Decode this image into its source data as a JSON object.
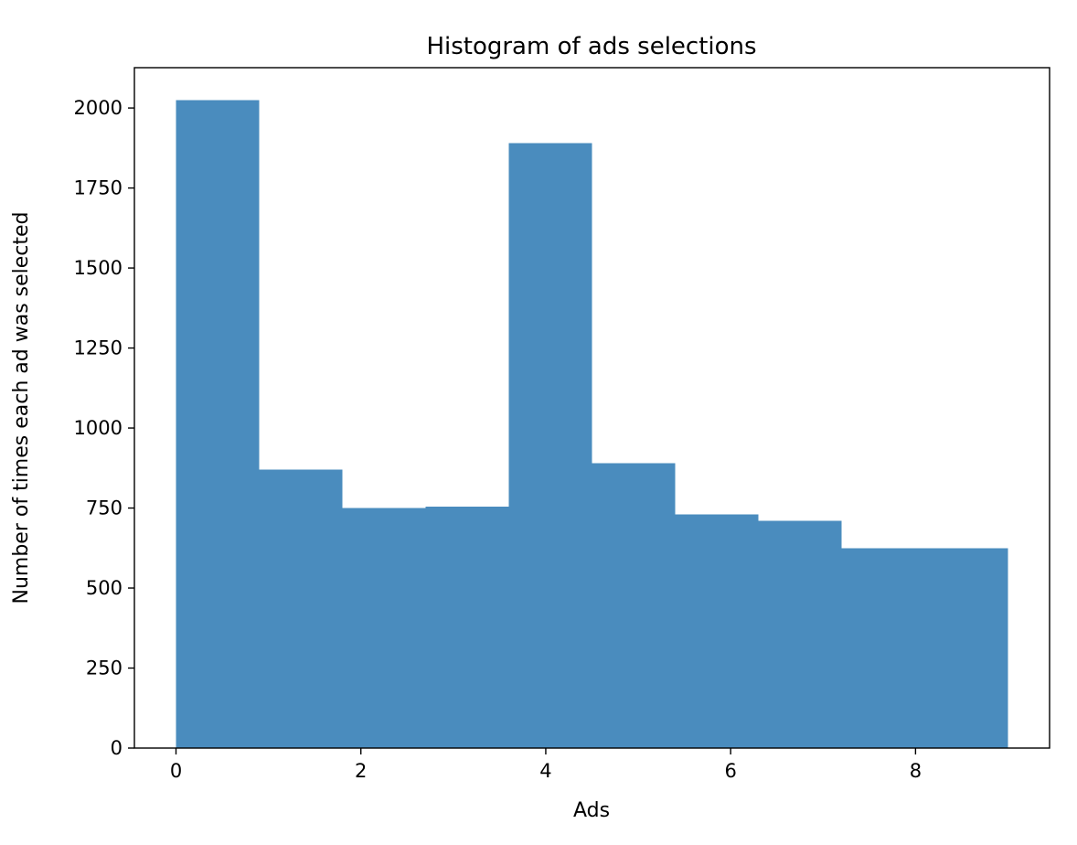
{
  "chart_data": {
    "type": "bar",
    "title": "Histogram of ads selections",
    "xlabel": "Ads",
    "ylabel": "Number of times each ad was selected",
    "bar_color": "#4a8cbe",
    "background": "#ffffff",
    "text_color": "#000000",
    "bin_edges": [
      0,
      0.9,
      1.8,
      2.7,
      3.6,
      4.5,
      5.4,
      6.3,
      7.2,
      8.1,
      9.0
    ],
    "values": [
      2025,
      870,
      750,
      755,
      1890,
      890,
      730,
      710,
      625,
      625
    ],
    "xlim": [
      -0.45,
      9.45
    ],
    "ylim": [
      0,
      2126
    ],
    "x_ticks": [
      0,
      2,
      4,
      6,
      8
    ],
    "y_ticks": [
      0,
      250,
      500,
      750,
      1000,
      1250,
      1500,
      1750,
      2000
    ],
    "grid": false,
    "legend": "none"
  }
}
